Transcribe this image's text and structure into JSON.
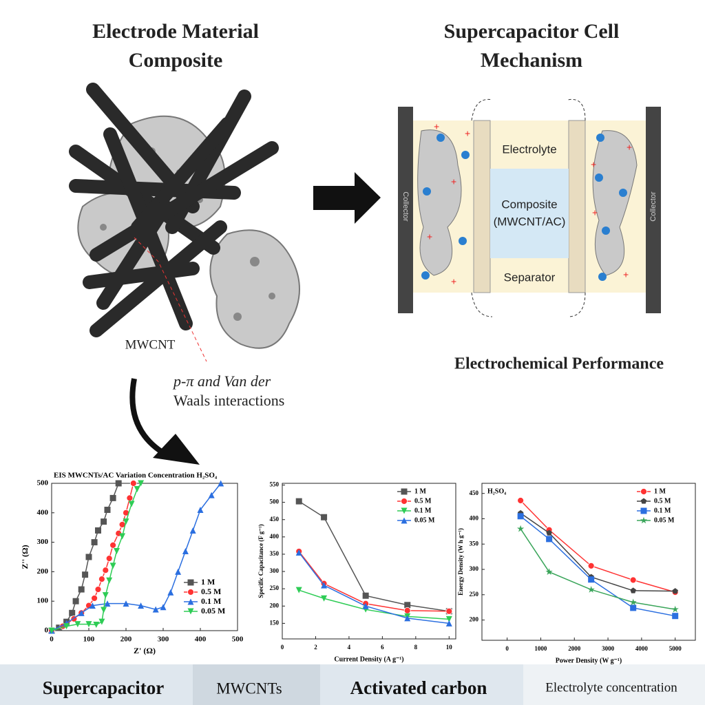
{
  "diagram": {
    "left_title": [
      "Electrode Material",
      "Composite"
    ],
    "right_title": [
      "Supercapacitor Cell",
      "Mechanism"
    ],
    "mwcnt_label": "MWCNT",
    "interaction_label": [
      "p-π and Van der",
      "Waals interactions"
    ],
    "cell": {
      "electrolyte": "Electrolyte",
      "composite": [
        "Composite",
        "(MWCNT/AC)"
      ],
      "separator": "Separator",
      "collector": "Collector"
    },
    "performance_title": "Electrochemical Performance"
  },
  "chart_data": [
    {
      "type": "line",
      "title": "EIS MWCNTs/AC Variation Concentration H₂SO₄",
      "x_label": "Z' (Ω)",
      "y_label": "Z'' (Ω)",
      "xlim": [
        0,
        500
      ],
      "ylim": [
        0,
        500
      ],
      "xticks": [
        0,
        100,
        200,
        300,
        400,
        500
      ],
      "yticks": [
        0,
        100,
        200,
        300,
        400,
        500
      ],
      "legend": "lower right",
      "series": [
        {
          "name": "1 M",
          "color": "#555555",
          "marker": "square",
          "x": [
            0,
            20,
            40,
            55,
            65,
            80,
            90,
            100,
            115,
            125,
            140,
            150,
            165,
            180
          ],
          "values": [
            0,
            10,
            30,
            60,
            100,
            140,
            190,
            250,
            300,
            340,
            370,
            410,
            450,
            500
          ]
        },
        {
          "name": "0.5 M",
          "color": "#ff3333",
          "marker": "circle",
          "x": [
            0,
            30,
            60,
            80,
            100,
            115,
            125,
            135,
            145,
            155,
            165,
            180,
            190,
            200,
            210,
            220
          ],
          "values": [
            0,
            15,
            40,
            60,
            85,
            110,
            140,
            175,
            205,
            245,
            290,
            330,
            360,
            400,
            450,
            500
          ]
        },
        {
          "name": "0.1 M",
          "color": "#2b6fe0",
          "marker": "triangle",
          "x": [
            0,
            40,
            80,
            110,
            150,
            200,
            240,
            280,
            300,
            320,
            340,
            360,
            380,
            400,
            430,
            455
          ],
          "values": [
            0,
            25,
            60,
            85,
            92,
            92,
            85,
            72,
            80,
            130,
            200,
            270,
            340,
            410,
            460,
            500
          ]
        },
        {
          "name": "0.05 M",
          "color": "#2ecc55",
          "marker": "triangle-down",
          "x": [
            0,
            40,
            70,
            100,
            120,
            135,
            140,
            145,
            155,
            165,
            175,
            190,
            200,
            215,
            230,
            240
          ],
          "values": [
            0,
            15,
            22,
            22,
            20,
            30,
            70,
            120,
            170,
            220,
            270,
            320,
            370,
            430,
            480,
            500
          ]
        }
      ]
    },
    {
      "type": "line",
      "x_label": "Current Density (A g⁻¹)",
      "y_label": "Specific Capacitance (F g⁻¹)",
      "xlim": [
        0,
        10.4
      ],
      "ylim": [
        105,
        555
      ],
      "xticks": [
        0,
        2,
        4,
        6,
        8,
        10
      ],
      "yticks": [
        150,
        200,
        250,
        300,
        350,
        400,
        450,
        500,
        550
      ],
      "legend": "upper right",
      "x": [
        1,
        2.5,
        5,
        7.5,
        10
      ],
      "series": [
        {
          "name": "1 M",
          "color": "#555555",
          "marker": "square",
          "values": [
            503,
            457,
            230,
            203,
            185
          ]
        },
        {
          "name": "0.5 M",
          "color": "#ff3333",
          "marker": "circle",
          "values": [
            358,
            265,
            207,
            187,
            185
          ]
        },
        {
          "name": "0.1 M",
          "color": "#2ecc55",
          "marker": "triangle-down",
          "values": [
            246,
            222,
            190,
            170,
            162
          ]
        },
        {
          "name": "0.05 M",
          "color": "#2b6fe0",
          "marker": "triangle",
          "values": [
            355,
            260,
            200,
            165,
            150
          ]
        }
      ]
    },
    {
      "type": "line",
      "annotation": "H₂SO₄",
      "x_label": "Power Density (W g⁻¹)",
      "y_label": "Energy Density (W h g⁻¹)",
      "xlim": [
        -750,
        5600
      ],
      "ylim": [
        160,
        470
      ],
      "xticks": [
        0,
        1000,
        2000,
        3000,
        4000,
        5000
      ],
      "yticks": [
        200,
        250,
        300,
        350,
        400,
        450
      ],
      "legend": "upper right",
      "x": [
        400,
        1250,
        2500,
        3750,
        5000
      ],
      "series": [
        {
          "name": "1 M",
          "color": "#ff3333",
          "marker": "circle",
          "values": [
            436,
            378,
            307,
            279,
            255
          ]
        },
        {
          "name": "0.5 M",
          "color": "#444444",
          "marker": "pentagon",
          "values": [
            411,
            372,
            285,
            258,
            257
          ]
        },
        {
          "name": "0.1 M",
          "color": "#2b6fe0",
          "marker": "square",
          "values": [
            405,
            360,
            280,
            224,
            208
          ]
        },
        {
          "name": "0.05 M",
          "color": "#3aa55a",
          "marker": "star",
          "values": [
            380,
            295,
            260,
            235,
            221
          ]
        }
      ]
    }
  ],
  "keywords": [
    "Supercapacitor",
    "MWCNTs",
    "Activated carbon",
    "Electrolyte concentration"
  ]
}
